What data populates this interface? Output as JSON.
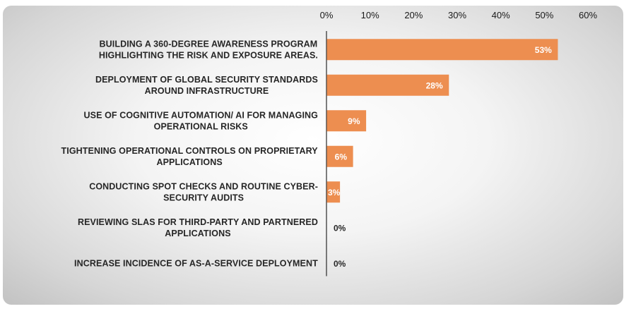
{
  "chart_data": {
    "type": "bar",
    "orientation": "horizontal",
    "title": "",
    "xlabel": "",
    "ylabel": "",
    "xlim": [
      0,
      60
    ],
    "x_ticks": [
      "0%",
      "10%",
      "20%",
      "30%",
      "40%",
      "50%",
      "60%"
    ],
    "x_tick_values": [
      0,
      10,
      20,
      30,
      40,
      50,
      60
    ],
    "axis_position": "top",
    "grid": false,
    "legend": "none",
    "bar_color": "#ed8e50",
    "categories": [
      [
        "BUILDING A 360-DEGREE AWARENESS PROGRAM",
        "HIGHLIGHTING THE RISK AND EXPOSURE AREAS."
      ],
      [
        "DEPLOYMENT OF GLOBAL SECURITY STANDARDS",
        "AROUND INFRASTRUCTURE"
      ],
      [
        "USE OF COGNITIVE AUTOMATION/ AI FOR MANAGING",
        "OPERATIONAL RISKS"
      ],
      [
        "TIGHTENING OPERATIONAL CONTROLS ON PROPRIETARY",
        "APPLICATIONS"
      ],
      [
        "CONDUCTING SPOT CHECKS AND ROUTINE CYBER-",
        "SECURITY AUDITS"
      ],
      [
        "REVIEWING SLAS FOR THIRD-PARTY AND PARTNERED",
        "APPLICATIONS"
      ],
      [
        "INCREASE INCIDENCE OF AS-A-SERVICE DEPLOYMENT"
      ]
    ],
    "values": [
      53,
      28,
      9,
      6,
      3,
      0,
      0
    ],
    "value_labels": [
      "53%",
      "28%",
      "9%",
      "6%",
      "3%",
      "0%",
      "0%"
    ]
  }
}
